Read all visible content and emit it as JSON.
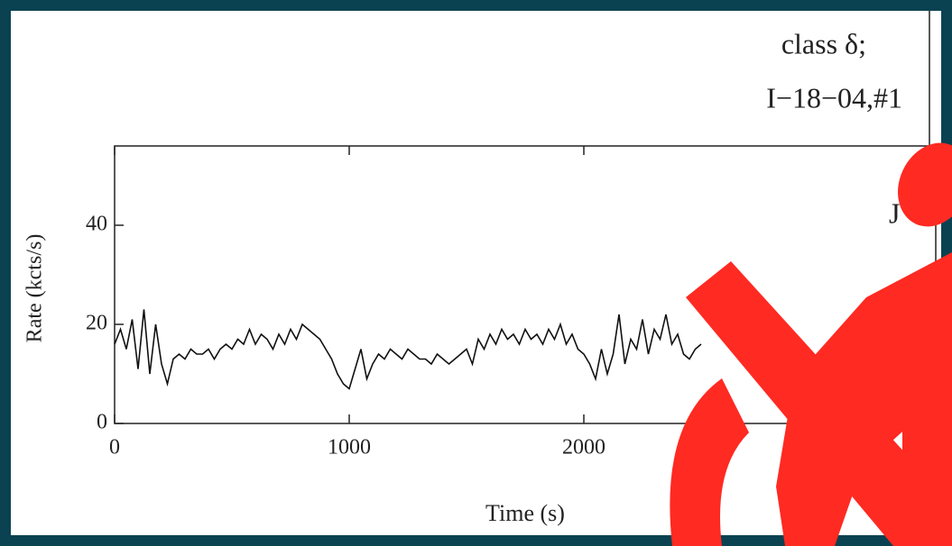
{
  "chart_data": {
    "type": "line",
    "annotations": [
      "class δ;",
      "I−18−04,#1",
      "J"
    ],
    "xlabel": "Time (s)",
    "ylabel": "Rate (kcts/s)",
    "x": [
      0,
      25,
      50,
      75,
      100,
      125,
      150,
      175,
      200,
      225,
      250,
      275,
      300,
      325,
      350,
      375,
      400,
      425,
      450,
      475,
      500,
      525,
      550,
      575,
      600,
      625,
      650,
      675,
      700,
      725,
      750,
      775,
      800,
      825,
      850,
      875,
      900,
      925,
      950,
      975,
      1000,
      1025,
      1050,
      1075,
      1100,
      1125,
      1150,
      1175,
      1200,
      1225,
      1250,
      1275,
      1300,
      1325,
      1350,
      1375,
      1400,
      1425,
      1450,
      1475,
      1500,
      1525,
      1550,
      1575,
      1600,
      1625,
      1650,
      1675,
      1700,
      1725,
      1750,
      1775,
      1800,
      1825,
      1850,
      1875,
      1900,
      1925,
      1950,
      1975,
      2000,
      2025,
      2050,
      2075,
      2100,
      2125,
      2150,
      2175,
      2200,
      2225,
      2250,
      2275,
      2300,
      2325,
      2350,
      2375,
      2400,
      2425,
      2450,
      2475,
      2500
    ],
    "values": [
      16,
      19,
      15,
      21,
      11,
      23,
      10,
      20,
      12,
      8,
      13,
      14,
      13,
      15,
      14,
      14,
      15,
      13,
      15,
      16,
      15,
      17,
      16,
      19,
      16,
      18,
      17,
      15,
      18,
      16,
      19,
      17,
      20,
      19,
      18,
      17,
      15,
      13,
      10,
      8,
      7,
      11,
      15,
      9,
      12,
      14,
      13,
      15,
      14,
      13,
      15,
      14,
      13,
      13,
      12,
      14,
      13,
      12,
      13,
      14,
      15,
      12,
      17,
      15,
      18,
      16,
      19,
      17,
      18,
      16,
      19,
      17,
      18,
      16,
      19,
      17,
      20,
      16,
      18,
      15,
      14,
      12,
      9,
      15,
      10,
      14,
      22,
      12,
      17,
      15,
      21,
      14,
      19,
      17,
      22,
      16,
      18,
      14,
      13,
      15,
      16
    ],
    "color": "#111111",
    "xlim": [
      0,
      3500
    ],
    "xticks": [
      0,
      1000,
      2000
    ],
    "ylim": [
      0,
      56
    ],
    "yticks": [
      0,
      20,
      40
    ]
  }
}
